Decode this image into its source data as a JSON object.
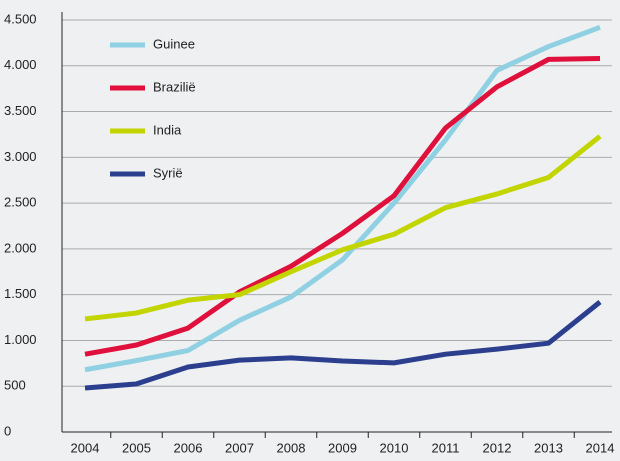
{
  "chart_data": {
    "type": "line",
    "categories": [
      "2004",
      "2005",
      "2006",
      "2007",
      "2008",
      "2009",
      "2010",
      "2011",
      "2012",
      "2013",
      "2014"
    ],
    "series": [
      {
        "name": "Guinee",
        "color": "#8fd0e3",
        "values": [
          680,
          780,
          890,
          1220,
          1475,
          1880,
          2500,
          3190,
          3950,
          4210,
          4420
        ]
      },
      {
        "name": "Brazilië",
        "color": "#e0103c",
        "values": [
          850,
          950,
          1135,
          1530,
          1810,
          2170,
          2580,
          3320,
          3770,
          4070,
          4080
        ]
      },
      {
        "name": "India",
        "color": "#c2d500",
        "values": [
          1235,
          1300,
          1440,
          1500,
          1750,
          1990,
          2160,
          2450,
          2600,
          2780,
          3230
        ]
      },
      {
        "name": "Syrië",
        "color": "#2b3f8e",
        "values": [
          480,
          525,
          710,
          785,
          810,
          775,
          755,
          850,
          905,
          970,
          1420
        ]
      }
    ],
    "ylim": [
      0,
      4500
    ],
    "yticks": [
      0,
      500,
      {
        "value": 1000,
        "label": "1.000"
      },
      {
        "value": 1500,
        "label": "1.500"
      },
      {
        "value": 2000,
        "label": "2.000"
      },
      {
        "value": 2500,
        "label": "2.500"
      },
      {
        "value": 3000,
        "label": "3.000"
      },
      {
        "value": 3500,
        "label": "3.500"
      },
      {
        "value": 4000,
        "label": "4.000"
      },
      {
        "value": 4500,
        "label": "4.500"
      }
    ],
    "grid": true,
    "legend": "upper-left"
  }
}
